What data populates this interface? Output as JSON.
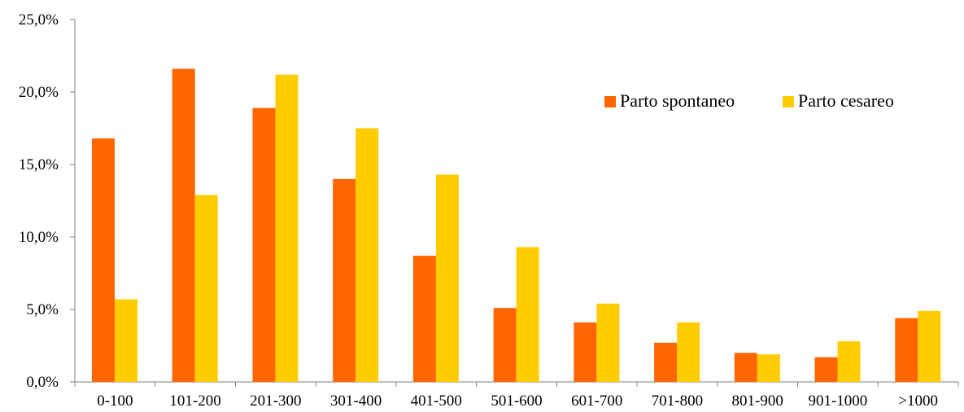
{
  "chart_data": {
    "type": "bar",
    "categories": [
      "0-100",
      "101-200",
      "201-300",
      "301-400",
      "401-500",
      "501-600",
      "601-700",
      "701-800",
      "801-900",
      "901-1000",
      ">1000"
    ],
    "series": [
      {
        "name": "Parto spontaneo",
        "color": "#FF6600",
        "values": [
          16.8,
          21.6,
          18.9,
          14.0,
          8.7,
          5.1,
          4.1,
          2.7,
          2.0,
          1.7,
          4.4
        ]
      },
      {
        "name": "Parto cesareo",
        "color": "#FFCC00",
        "values": [
          5.7,
          12.9,
          21.2,
          17.5,
          14.3,
          9.3,
          5.4,
          4.1,
          1.9,
          2.8,
          4.9
        ]
      }
    ],
    "ylim": [
      0,
      25
    ],
    "yticks": [
      0,
      5,
      10,
      15,
      20,
      25
    ],
    "ytick_labels": [
      "0,0%",
      "5,0%",
      "10,0%",
      "15,0%",
      "20,0%",
      "25,0%"
    ],
    "grid": false,
    "legend_position": "top-right",
    "title": "",
    "xlabel": "",
    "ylabel": ""
  }
}
